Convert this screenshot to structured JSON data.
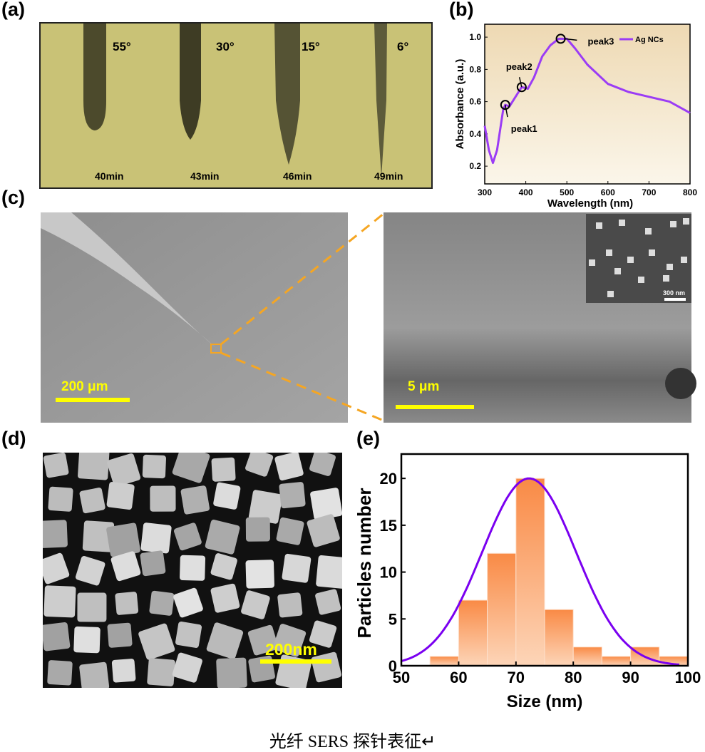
{
  "panel_labels": {
    "a": "(a)",
    "b": "(b)",
    "c": "(c)",
    "d": "(d)",
    "e": "(e)"
  },
  "panel_a": {
    "angles": [
      "55°",
      "30°",
      "15°",
      "6°"
    ],
    "times": [
      "40min",
      "43min",
      "46min",
      "49min"
    ]
  },
  "panel_c": {
    "left_scale": "200 μm",
    "right_scale": "5 μm",
    "inset_scale": "300 nm"
  },
  "panel_d": {
    "scale": "200nm"
  },
  "caption": "光纤 SERS 探针表征↵",
  "colors": {
    "curve": "#9b3cf5",
    "fit": "#7a00f0",
    "bar": "#f98a45",
    "scale": "#ffff00",
    "dash": "#f5a623"
  },
  "chart_data": [
    {
      "type": "line",
      "title": "",
      "xlabel": "Wavelength (nm)",
      "ylabel": "Absorbance (a.u.)",
      "xlim": [
        300,
        800
      ],
      "ylim": [
        0.09,
        1.08
      ],
      "xticks": [
        300,
        400,
        500,
        600,
        700,
        800
      ],
      "yticks": [
        0.2,
        0.4,
        0.6,
        0.8,
        1.0
      ],
      "ytick_labels": [
        "0.2",
        "0.4",
        "0.6",
        "0.8",
        "1.0"
      ],
      "legend": "top-right",
      "series": [
        {
          "name": "Ag NCs",
          "x": [
            300,
            310,
            320,
            330,
            345,
            350,
            360,
            375,
            390,
            405,
            420,
            440,
            460,
            480,
            500,
            520,
            550,
            600,
            650,
            700,
            750,
            800
          ],
          "y": [
            0.45,
            0.3,
            0.22,
            0.3,
            0.55,
            0.58,
            0.57,
            0.63,
            0.69,
            0.68,
            0.75,
            0.88,
            0.95,
            0.99,
            0.99,
            0.93,
            0.83,
            0.71,
            0.66,
            0.63,
            0.6,
            0.53
          ]
        }
      ],
      "annotations": [
        {
          "text": "peak1",
          "x": 350,
          "y": 0.58
        },
        {
          "text": "peak2",
          "x": 390,
          "y": 0.69
        },
        {
          "text": "peak3",
          "x": 485,
          "y": 0.99
        }
      ]
    },
    {
      "type": "bar",
      "title": "",
      "xlabel": "Size (nm)",
      "ylabel": "Particles number",
      "xlim": [
        50,
        100
      ],
      "ylim": [
        0,
        22.6
      ],
      "xticks": [
        50,
        60,
        70,
        80,
        90,
        100
      ],
      "yticks": [
        0,
        5,
        10,
        15,
        20
      ],
      "bins": [
        [
          55,
          60
        ],
        [
          60,
          65
        ],
        [
          65,
          70
        ],
        [
          70,
          75
        ],
        [
          75,
          80
        ],
        [
          80,
          85
        ],
        [
          85,
          90
        ],
        [
          90,
          95
        ],
        [
          95,
          100
        ]
      ],
      "values": [
        1,
        7,
        12,
        20,
        6,
        2,
        1,
        2,
        1
      ],
      "fit": {
        "type": "gaussian",
        "center": 72.3,
        "peak": 20,
        "sigma": 8.2
      }
    }
  ]
}
